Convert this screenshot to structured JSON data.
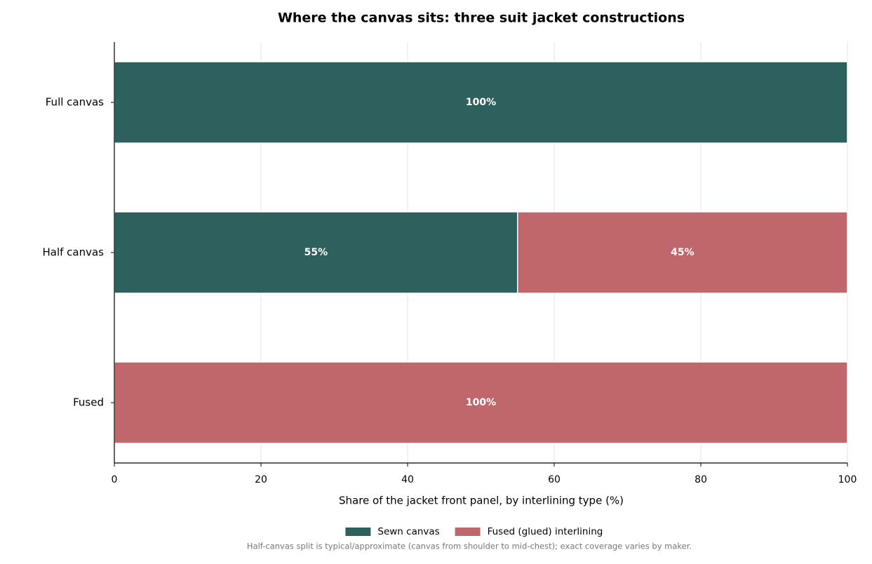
{
  "chart_data": {
    "type": "stacked_barh",
    "title": "Where the canvas sits: three suit jacket constructions",
    "xlabel": "Share of the jacket front panel, by interlining type (%)",
    "footnote": "Half-canvas split is typical/approximate (canvas from shoulder to mid-chest); exact coverage varies by maker.",
    "categories": [
      "Full canvas",
      "Half canvas",
      "Fused"
    ],
    "series": [
      {
        "name": "Sewn canvas",
        "color": "#2e605e",
        "values": [
          100,
          55,
          0
        ],
        "value_labels": [
          "100%",
          "55%",
          null
        ]
      },
      {
        "name": "Fused (glued) interlining",
        "color": "#c0676b",
        "values": [
          0,
          45,
          100
        ],
        "value_labels": [
          null,
          "45%",
          "100%"
        ]
      }
    ],
    "xlim": [
      0,
      100
    ],
    "xticks": [
      0,
      20,
      40,
      60,
      80,
      100
    ],
    "grid": true,
    "legend": "bottom"
  }
}
